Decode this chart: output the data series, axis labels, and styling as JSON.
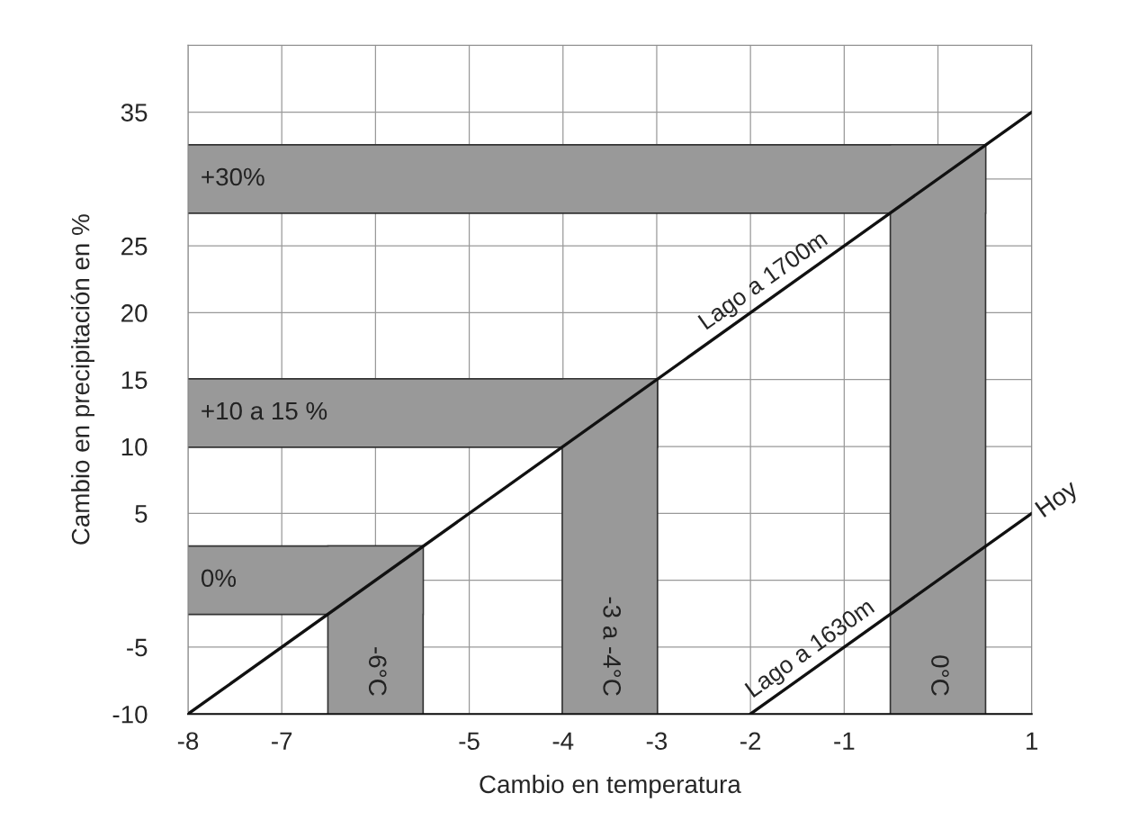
{
  "chart_data": {
    "type": "line",
    "xlabel": "Cambio en temperatura",
    "ylabel": "Cambio en precipitación en %",
    "xlim": [
      -8,
      1
    ],
    "xticks": [
      -8,
      -7,
      {
        "value": -6,
        "label": null
      },
      -5,
      -4,
      -3,
      -2,
      -1,
      {
        "value": 0,
        "label": null
      },
      1
    ],
    "ylim": [
      -10,
      40
    ],
    "yticks": [
      -10,
      -5,
      {
        "value": 0,
        "label": null
      },
      5,
      10,
      15,
      20,
      25,
      {
        "value": 30,
        "label": null
      },
      35,
      {
        "value": 40,
        "label": null
      }
    ],
    "grid": true,
    "series": [
      {
        "type": "area",
        "name": "+30%",
        "color": "#999999",
        "x": [
          -8,
          0.5,
          0.5,
          -8
        ],
        "values": [
          27.5,
          27.5,
          32.5,
          32.5
        ]
      },
      {
        "type": "area",
        "name": "0°C",
        "color": "#999999",
        "x": [
          -0.5,
          0.5,
          0.5,
          -0.5
        ],
        "values": [
          -10,
          -10,
          32.5,
          32.5
        ]
      },
      {
        "type": "area",
        "name": "+10 a 15 %",
        "color": "#999999",
        "x": [
          -8,
          -3,
          -3,
          -8
        ],
        "values": [
          10,
          10,
          15,
          15
        ]
      },
      {
        "type": "area",
        "name": "-3 a -4°C",
        "color": "#999999",
        "x": [
          -4,
          -3,
          -3,
          -4
        ],
        "values": [
          -10,
          -10,
          15,
          15
        ]
      },
      {
        "type": "area",
        "name": "0%",
        "color": "#999999",
        "x": [
          -8,
          -5.5,
          -5.5,
          -8
        ],
        "values": [
          -2.5,
          -2.5,
          2.5,
          2.5
        ]
      },
      {
        "type": "area",
        "name": "-6°C",
        "color": "#999999",
        "x": [
          -6.5,
          -5.5,
          -5.5,
          -6.5
        ],
        "values": [
          -10,
          -10,
          2.5,
          2.5
        ]
      },
      {
        "name": "Lago a 1700m",
        "color": "#111111",
        "x": [
          -8,
          1
        ],
        "values": [
          -10,
          35
        ]
      },
      {
        "name": "Lago a 1630m",
        "color": "#111111",
        "x": [
          -2,
          1
        ],
        "values": [
          -10,
          5
        ]
      }
    ],
    "annotations": [
      {
        "text": "Hoy",
        "x": 1,
        "y": 5
      }
    ]
  }
}
